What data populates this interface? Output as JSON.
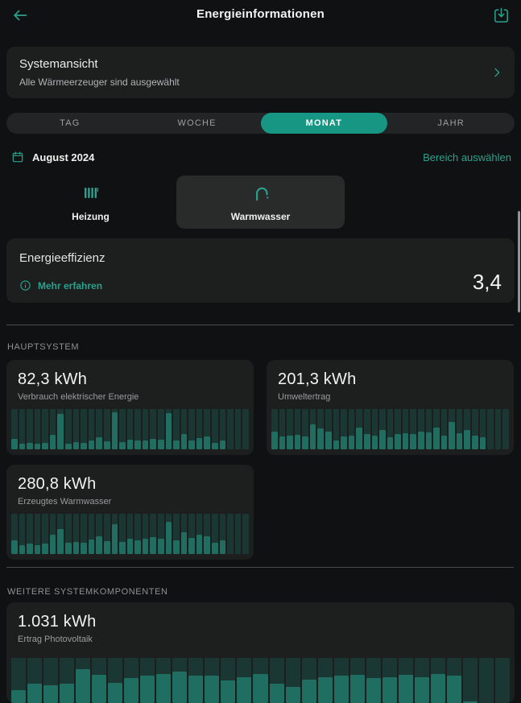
{
  "colors": {
    "background": "#101112",
    "card": "#1d1f1f",
    "card_selected": "#292b2b",
    "accent": "#2ba18d",
    "pill": "#189684",
    "bar_fill": "#206e62",
    "bar_track": "#1b3734"
  },
  "header": {
    "title": "Energieinformationen"
  },
  "system_card": {
    "title": "Systemansicht",
    "subtitle": "Alle Wärmeerzeuger sind ausgewählt"
  },
  "period_tabs": {
    "options": [
      "TAG",
      "WOCHE",
      "MONAT",
      "JAHR"
    ],
    "selected": "MONAT"
  },
  "date_bar": {
    "label": "August 2024",
    "range_link": "Bereich auswählen"
  },
  "categories": {
    "heating": {
      "label": "Heizung",
      "selected": false
    },
    "hot_water": {
      "label": "Warmwasser",
      "selected": true
    }
  },
  "efficiency_card": {
    "title": "Energieeffizienz",
    "info_link": "Mehr erfahren",
    "value": "3,4"
  },
  "sections": {
    "main": "HAUPTSYSTEM",
    "components": "WEITERE SYSTEMKOMPONENTEN"
  },
  "chart_data": [
    {
      "type": "bar",
      "value_label": "82,3 kWh",
      "label": "Verbrauch elektrischer Energie",
      "section": "HAUPTSYSTEM",
      "x": "31 Tage im August 2024, keine Achsenbeschriftung sichtbar",
      "note": "Werte sind relative Balkenhöhen 0–1 (keine Skala im Bild); Tage 29–31 ohne Daten",
      "values": [
        0.26,
        0.15,
        0.17,
        0.14,
        0.16,
        0.36,
        0.88,
        0.15,
        0.18,
        0.16,
        0.23,
        0.3,
        0.2,
        0.92,
        0.18,
        0.24,
        0.22,
        0.23,
        0.27,
        0.24,
        0.9,
        0.22,
        0.38,
        0.23,
        0.28,
        0.33,
        0.16,
        0.22,
        0,
        0,
        0
      ]
    },
    {
      "type": "bar",
      "value_label": "201,3 kWh",
      "label": "Umweltertrag",
      "section": "HAUPTSYSTEM",
      "x": "31 Tage im August 2024, keine Achsenbeschriftung sichtbar",
      "note": "Werte sind relative Balkenhöhen 0–1; Tage 29–31 ohne Daten",
      "values": [
        0.45,
        0.33,
        0.35,
        0.36,
        0.33,
        0.62,
        0.52,
        0.45,
        0.22,
        0.32,
        0.35,
        0.55,
        0.38,
        0.35,
        0.48,
        0.3,
        0.38,
        0.4,
        0.38,
        0.45,
        0.42,
        0.55,
        0.35,
        0.68,
        0.4,
        0.48,
        0.35,
        0.3,
        0,
        0,
        0
      ]
    },
    {
      "type": "bar",
      "value_label": "280,8 kWh",
      "label": "Erzeugtes Warmwasser",
      "section": "HAUPTSYSTEM",
      "x": "31 Tage im August 2024, keine Achsenbeschriftung sichtbar",
      "note": "Werte sind relative Balkenhöhen 0–1; Tage 29–31 ohne Daten",
      "values": [
        0.35,
        0.22,
        0.26,
        0.22,
        0.26,
        0.48,
        0.62,
        0.28,
        0.3,
        0.28,
        0.36,
        0.45,
        0.33,
        0.75,
        0.3,
        0.38,
        0.35,
        0.38,
        0.42,
        0.38,
        0.8,
        0.35,
        0.55,
        0.4,
        0.48,
        0.45,
        0.28,
        0.35,
        0,
        0,
        0
      ]
    },
    {
      "type": "bar",
      "value_label": "1.031 kWh",
      "label": "Ertrag Photovoltaik",
      "section": "WEITERE SYSTEMKOMPONENTEN",
      "x": "31 Tage im August 2024, keine Achsenbeschriftung sichtbar",
      "note": "Werte sind relative Balkenhöhen 0–1; Diagramm am unteren Bildrand abgeschnitten; Tage 30–31 ohne Daten",
      "values": [
        0.28,
        0.42,
        0.4,
        0.42,
        0.75,
        0.62,
        0.45,
        0.55,
        0.6,
        0.65,
        0.7,
        0.6,
        0.6,
        0.5,
        0.58,
        0.65,
        0.42,
        0.35,
        0.52,
        0.58,
        0.6,
        0.62,
        0.55,
        0.58,
        0.62,
        0.58,
        0.65,
        0.6,
        0.04,
        0,
        0
      ]
    }
  ]
}
